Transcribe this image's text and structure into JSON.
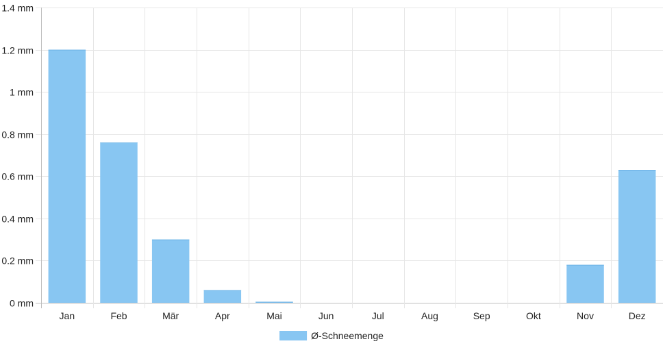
{
  "chart_data": {
    "type": "bar",
    "categories": [
      "Jan",
      "Feb",
      "Mär",
      "Apr",
      "Mai",
      "Jun",
      "Jul",
      "Aug",
      "Sep",
      "Okt",
      "Nov",
      "Dez"
    ],
    "series": [
      {
        "name": "Ø-Schneemenge",
        "values": [
          1.2,
          0.76,
          0.3,
          0.06,
          0.005,
          0,
          0,
          0,
          0,
          0,
          0.18,
          0.63
        ],
        "color": "#88c6f2"
      }
    ],
    "y_ticks": [
      0,
      0.2,
      0.4,
      0.6,
      0.8,
      1,
      1.2,
      1.4
    ],
    "y_tick_labels": [
      "0 mm",
      "0.2 mm",
      "0.4 mm",
      "0.6 mm",
      "0.8 mm",
      "1 mm",
      "1.2 mm",
      "1.4 mm"
    ],
    "ylim": [
      0,
      1.4
    ],
    "grid": true,
    "legend_position": "bottom-center"
  }
}
